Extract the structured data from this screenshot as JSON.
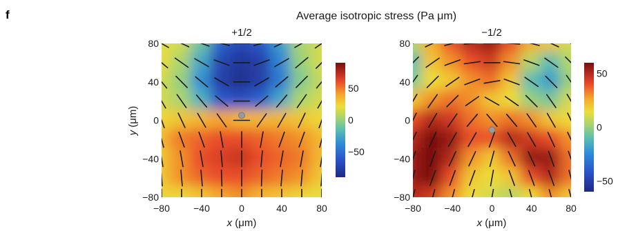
{
  "figure": {
    "panel_label": "f",
    "title": "Average isotropic stress (Pa μm)"
  },
  "chart_data": [
    {
      "type": "heatmap",
      "subtitle": "+1/2",
      "xlabel_var": "x",
      "xlabel_unit": " (μm)",
      "ylabel_var": "y",
      "ylabel_unit": " (μm)",
      "xlim": [
        -80,
        80
      ],
      "ylim": [
        -80,
        80
      ],
      "xticks": [
        "−80",
        "−40",
        "0",
        "40",
        "80"
      ],
      "yticks": [
        "80",
        "40",
        "0",
        "−40",
        "−80"
      ],
      "x": [
        -80,
        -60,
        -40,
        -20,
        0,
        20,
        40,
        60,
        80
      ],
      "y": [
        80,
        60,
        40,
        20,
        0,
        -20,
        -40,
        -60,
        -80
      ],
      "values": [
        [
          20,
          15,
          -10,
          -55,
          -70,
          -60,
          -30,
          5,
          15
        ],
        [
          20,
          5,
          -25,
          -70,
          -80,
          -75,
          -40,
          0,
          15
        ],
        [
          15,
          0,
          -35,
          -75,
          -85,
          -75,
          -45,
          -5,
          10
        ],
        [
          15,
          5,
          -20,
          -60,
          -65,
          -55,
          -25,
          5,
          15
        ],
        [
          25,
          30,
          35,
          40,
          35,
          35,
          35,
          30,
          25
        ],
        [
          35,
          50,
          55,
          60,
          60,
          55,
          50,
          45,
          35
        ],
        [
          30,
          45,
          60,
          65,
          70,
          60,
          55,
          50,
          35
        ],
        [
          30,
          45,
          55,
          60,
          60,
          55,
          50,
          45,
          30
        ],
        [
          25,
          25,
          30,
          40,
          45,
          35,
          30,
          25,
          20
        ]
      ],
      "director_angles_deg": [
        [
          -30,
          -25,
          -20,
          -15,
          0,
          15,
          25,
          30,
          35
        ],
        [
          -40,
          -35,
          -30,
          -20,
          0,
          20,
          30,
          40,
          45
        ],
        [
          -50,
          -45,
          -40,
          -30,
          0,
          30,
          40,
          45,
          50
        ],
        [
          -60,
          -55,
          -50,
          -40,
          0,
          40,
          50,
          55,
          60
        ],
        [
          -70,
          -65,
          -60,
          -55,
          0,
          55,
          60,
          65,
          70
        ],
        [
          -75,
          -70,
          -70,
          -80,
          90,
          80,
          70,
          70,
          75
        ],
        [
          -80,
          -80,
          -80,
          -85,
          90,
          85,
          80,
          80,
          80
        ],
        [
          -85,
          -85,
          -85,
          -88,
          90,
          88,
          85,
          85,
          85
        ],
        [
          90,
          90,
          90,
          90,
          90,
          90,
          90,
          90,
          90
        ]
      ],
      "defect_core": [
        0,
        5
      ],
      "colorbar": {
        "min": -90,
        "max": 90,
        "ticks": [
          50,
          0,
          -50
        ],
        "tick_labels": [
          "50",
          "0",
          "−50"
        ]
      }
    },
    {
      "type": "heatmap",
      "subtitle": "−1/2",
      "xlabel_var": "x",
      "xlabel_unit": " (μm)",
      "ylabel_var": "",
      "ylabel_unit": "",
      "xlim": [
        -80,
        80
      ],
      "ylim": [
        -80,
        80
      ],
      "xticks": [
        "−80",
        "−40",
        "0",
        "40",
        "80"
      ],
      "yticks": [
        "80",
        "40",
        "0",
        "−40",
        "−80"
      ],
      "x": [
        -80,
        -60,
        -40,
        -20,
        0,
        20,
        40,
        60,
        80
      ],
      "y": [
        80,
        60,
        40,
        20,
        0,
        -20,
        -40,
        -60,
        -80
      ],
      "values": [
        [
          5,
          25,
          40,
          50,
          55,
          40,
          25,
          20,
          10
        ],
        [
          -10,
          20,
          30,
          40,
          45,
          30,
          5,
          -10,
          5
        ],
        [
          -5,
          15,
          20,
          30,
          35,
          20,
          -10,
          -20,
          0
        ],
        [
          20,
          30,
          35,
          30,
          20,
          15,
          0,
          -5,
          10
        ],
        [
          40,
          50,
          45,
          35,
          30,
          35,
          30,
          20,
          15
        ],
        [
          50,
          60,
          55,
          40,
          40,
          50,
          45,
          40,
          30
        ],
        [
          55,
          65,
          50,
          30,
          20,
          35,
          55,
          55,
          35
        ],
        [
          55,
          60,
          40,
          20,
          15,
          20,
          40,
          50,
          35
        ],
        [
          50,
          45,
          30,
          15,
          10,
          5,
          15,
          30,
          20
        ]
      ],
      "director_angles_deg": [
        [
          35,
          25,
          15,
          5,
          0,
          -5,
          -15,
          -25,
          -35
        ],
        [
          45,
          35,
          20,
          8,
          0,
          -8,
          -20,
          -35,
          -45
        ],
        [
          55,
          45,
          35,
          20,
          10,
          -20,
          -35,
          -45,
          -55
        ],
        [
          60,
          55,
          45,
          35,
          -30,
          -35,
          -45,
          -55,
          -60
        ],
        [
          65,
          60,
          55,
          50,
          -50,
          -50,
          -55,
          -60,
          -65
        ],
        [
          65,
          65,
          60,
          60,
          70,
          -60,
          -60,
          -65,
          -65
        ],
        [
          70,
          70,
          65,
          65,
          75,
          -65,
          -65,
          -70,
          -70
        ],
        [
          75,
          70,
          70,
          70,
          80,
          -70,
          -70,
          -70,
          -75
        ],
        [
          75,
          75,
          75,
          75,
          80,
          -75,
          -75,
          -75,
          -75
        ]
      ],
      "defect_core": [
        0,
        -10
      ],
      "colorbar": {
        "min": -60,
        "max": 60,
        "ticks": [
          50,
          0,
          -50
        ],
        "tick_labels": [
          "50",
          "0",
          "−50"
        ]
      }
    }
  ]
}
